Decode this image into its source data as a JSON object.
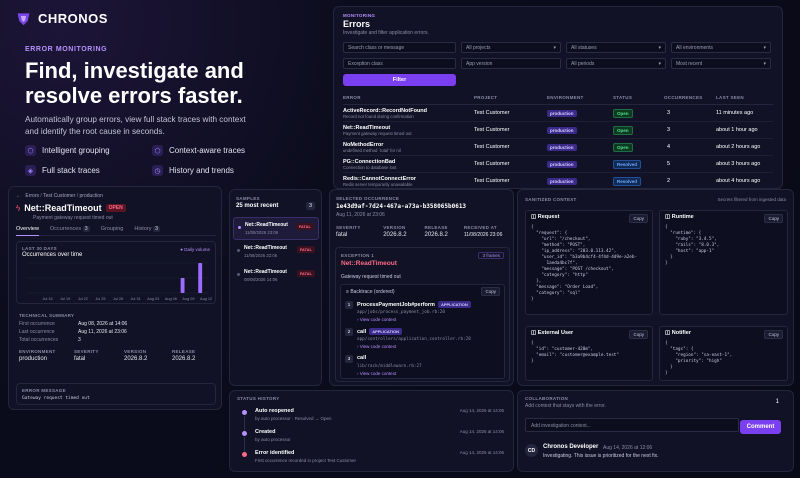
{
  "brand": {
    "name": "CHRONOS"
  },
  "hero": {
    "eyebrow": "ERROR MONITORING",
    "title_line1": "Find, investigate and",
    "title_line2": "resolve errors faster.",
    "sub_line1": "Automatically group errors, view full stack traces with context",
    "sub_line2": "and identify the root cause in seconds.",
    "features": [
      {
        "icon": "cube-icon",
        "label": "Intelligent grouping"
      },
      {
        "icon": "cube-icon",
        "label": "Context-aware traces"
      },
      {
        "icon": "stack-icon",
        "label": "Full stack traces"
      },
      {
        "icon": "history-icon",
        "label": "History and trends"
      }
    ]
  },
  "errors": {
    "eyebrow": "MONITORING",
    "title": "Errors",
    "subtitle": "Investigate and filter application errors.",
    "filters": {
      "search_placeholder": "Search class or message",
      "projects": "All projects",
      "statuses": "All statuses",
      "environments": "All environments",
      "exception_placeholder": "Exception class",
      "app_version": "App version",
      "periods": "All periods",
      "sort": "Most recent",
      "filter_button": "Filter"
    },
    "columns": [
      "ERROR",
      "PROJECT",
      "ENVIRONMENT",
      "STATUS",
      "OCCURRENCES",
      "LAST SEEN"
    ],
    "rows": [
      {
        "name": "ActiveRecord::RecordNotFound",
        "msg": "Record not found during confirmation",
        "project": "Test Customer",
        "env": "production",
        "status": "Open",
        "occ": "3",
        "last": "11 minutes ago"
      },
      {
        "name": "Net::ReadTimeout",
        "msg": "Payment gateway request timed out",
        "project": "Test Customer",
        "env": "production",
        "status": "Open",
        "occ": "3",
        "last": "about 1 hour ago"
      },
      {
        "name": "NoMethodError",
        "msg": "undefined method `total' for nil",
        "project": "Test Customer",
        "env": "production",
        "status": "Open",
        "occ": "4",
        "last": "about 2 hours ago"
      },
      {
        "name": "PG::ConnectionBad",
        "msg": "Connection to database lost",
        "project": "Test Customer",
        "env": "production",
        "status": "Resolved",
        "occ": "5",
        "last": "about 3 hours ago"
      },
      {
        "name": "Redis::CannotConnectError",
        "msg": "Redis server temporarily unavailable",
        "project": "Test Customer",
        "env": "production",
        "status": "Resolved",
        "occ": "2",
        "last": "about 4 hours ago"
      }
    ]
  },
  "detail": {
    "breadcrumb": [
      "Errors",
      "Test Customer",
      "production"
    ],
    "title": "Net::ReadTimeout",
    "status": "OPEN",
    "subtitle": "Payment gateway request timed out",
    "tabs": [
      {
        "label": "Overview",
        "count": ""
      },
      {
        "label": "Occurrences",
        "count": "3"
      },
      {
        "label": "Grouping",
        "count": ""
      },
      {
        "label": "History",
        "count": "3"
      }
    ],
    "chart": {
      "eyebrow": "LAST 30 DAYS",
      "title": "Occurrences over time",
      "legend": "Daily volume"
    },
    "summary_label": "TECHNICAL SUMMARY",
    "summary": [
      {
        "k": "First occurrence",
        "v": "Aug 08, 2026 at 14:06"
      },
      {
        "k": "Last occurrence",
        "v": "Aug 11, 2026 at 23:06"
      },
      {
        "k": "Total occurrences",
        "v": "3"
      }
    ],
    "meta_labels": [
      "ENVIRONMENT",
      "SEVERITY",
      "VERSION",
      "RELEASE"
    ],
    "meta_values": [
      "production",
      "fatal",
      "2026.8.2",
      "2026.8.2"
    ],
    "message_label": "ERROR MESSAGE",
    "message": "Gateway request timed out"
  },
  "chart_data": {
    "type": "bar",
    "title": "Occurrences over time",
    "categories": [
      "Jul 16",
      "Jul 19",
      "Jul 22",
      "Jul 25",
      "Jul 28",
      "Jul 31",
      "Aug 03",
      "Aug 06",
      "Aug 09",
      "Aug 12"
    ],
    "x": [
      "Jul 13",
      "Jul 14",
      "Jul 15",
      "Jul 16",
      "Jul 17",
      "Jul 18",
      "Jul 19",
      "Jul 20",
      "Jul 21",
      "Jul 22",
      "Jul 23",
      "Jul 24",
      "Jul 25",
      "Jul 26",
      "Jul 27",
      "Jul 28",
      "Jul 29",
      "Jul 30",
      "Jul 31",
      "Aug 01",
      "Aug 02",
      "Aug 03",
      "Aug 04",
      "Aug 05",
      "Aug 06",
      "Aug 07",
      "Aug 08",
      "Aug 09",
      "Aug 10",
      "Aug 11",
      "Aug 12"
    ],
    "values": [
      0,
      0,
      0,
      0,
      0,
      0,
      0,
      0,
      0,
      0,
      0,
      0,
      0,
      0,
      0,
      0,
      0,
      0,
      0,
      0,
      0,
      0,
      0,
      0,
      0,
      0,
      1,
      0,
      0,
      2,
      0
    ],
    "series": [
      {
        "name": "Daily volume"
      }
    ],
    "ylim": [
      0,
      2
    ],
    "grid": true,
    "legend": "top-right"
  },
  "samples": {
    "label": "SAMPLES",
    "title": "25 most recent",
    "count": "3",
    "items": [
      {
        "name": "Net::ReadTimeout",
        "date": "11/08/2026 23:06",
        "tag": "FATAL"
      },
      {
        "name": "Net::ReadTimeout",
        "date": "11/08/2026 22:06",
        "tag": "FATAL"
      },
      {
        "name": "Net::ReadTimeout",
        "date": "08/08/2026 14:06",
        "tag": "FATAL"
      }
    ]
  },
  "occurrence": {
    "label": "SELECTED OCCURRENCE",
    "id": "1e43d9af-7d24-467a-a73a-b358065b0613",
    "date": "Aug 11, 2026 at 23:06",
    "meta_labels": [
      "SEVERITY",
      "VERSION",
      "RELEASE",
      "RECEIVED AT"
    ],
    "meta_values": [
      "fatal",
      "2026.8.2",
      "2026.8.2",
      "11/08/2026 23:06"
    ],
    "exception_label": "EXCEPTION 1",
    "frames_count": "3 frames",
    "exception_name": "Net::ReadTimeout",
    "exception_msg": "Gateway request timed out",
    "backtrace_label": "Backtrace (ordered)",
    "copy": "Copy",
    "frames": [
      {
        "n": "1",
        "fn": "ProcessPaymentJob#perform",
        "tag": "APPLICATION",
        "path": "app/jobs/process_payment_job.rb:20",
        "link": "View code context"
      },
      {
        "n": "2",
        "fn": "call",
        "tag": "APPLICATION",
        "path": "app/controllers/application_controller.rb:28",
        "link": "View code context"
      },
      {
        "n": "3",
        "fn": "call",
        "tag": "",
        "path": "lib/rack/middleware.rb:27",
        "link": "View code context"
      }
    ]
  },
  "context": {
    "label": "SANITIZED CONTEXT",
    "note": "Secrets filtered from ingested data",
    "copy": "Copy",
    "request_title": "Request",
    "request_code": "{\n  \"request\": {\n    \"url\": \"/checkout\",\n    \"method\": \"POST\",\n    \"ip_address\": \"203.0.113.42\",\n    \"user_id\": \"b3a9b4cf4-4f4d-4d9e-a2eb-\n      1aeda4bc7f\",\n    \"message\": \"POST /checkout\",\n    \"category\": \"http\"\n  },\n  \"message\": \"Order Load\",\n  \"category\": \"sql\"\n}",
    "runtime_title": "Runtime",
    "runtime_code": "{\n  \"runtime\": {\n    \"ruby\": \"3.4.5\",\n    \"rails\": \"8.0.3\",\n    \"host\": \"app-1\"\n  }\n}",
    "user_title": "External User",
    "user_code": "{\n  \"id\": \"customer-420m\",\n  \"email\": \"customer@example.test\"\n}",
    "notifier_title": "Notifier",
    "notifier_code": "{\n  \"tags\": {\n    \"region\": \"sa-east-1\",\n    \"priority\": \"high\"\n  }\n}"
  },
  "history": {
    "label": "STATUS HISTORY",
    "items": [
      {
        "title": "Auto reopened",
        "sub": "by auto processor · Resolved → Open",
        "date": "Aug 14, 2026 at 14:06"
      },
      {
        "title": "Created",
        "sub": "by auto processor",
        "date": "Aug 14, 2026 at 14:06"
      },
      {
        "title": "Error identified",
        "sub": "First occurrence recorded in project Test Customer",
        "date": "Aug 14, 2026 at 14:06"
      }
    ]
  },
  "collab": {
    "label": "COLLABORATION",
    "sub": "Add context that stays with the error.",
    "count": "1",
    "placeholder": "Add investigation context...",
    "button": "Comment",
    "comment": {
      "initials": "CD",
      "author": "Chronos Developer",
      "date": "Aug 14, 2026 at 12:06",
      "text": "Investigating. This issue is prioritized for the next fix."
    }
  }
}
